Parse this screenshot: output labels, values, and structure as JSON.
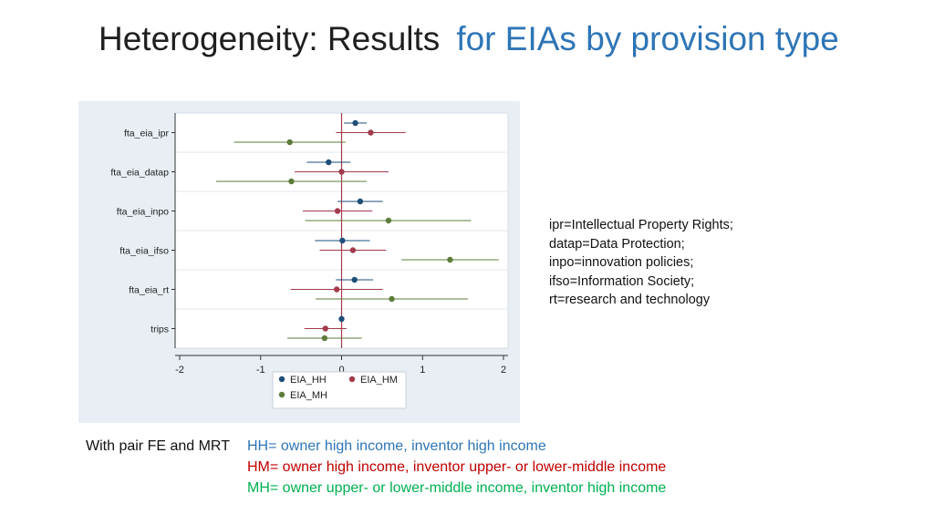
{
  "title": {
    "main": "Heterogeneity: Results",
    "accent": "for EIAs by provision type"
  },
  "chart_data": {
    "type": "scatter",
    "subtype": "coefficient-plot",
    "categories": [
      "fta_eia_ipr",
      "fta_eia_datap",
      "fta_eia_inpo",
      "fta_eia_ifso",
      "fta_eia_rt",
      "trips"
    ],
    "xlim": [
      -2,
      2
    ],
    "xticks": [
      -2,
      -1,
      0,
      1,
      2
    ],
    "reference_line_x": 0,
    "grid": true,
    "legend_placement": "bottom",
    "series": [
      {
        "name": "EIA_HH",
        "color": "#1f4e79",
        "values": [
          0.17,
          -0.16,
          0.23,
          0.01,
          0.16,
          0.0
        ],
        "ci_low": [
          0.03,
          -0.43,
          -0.05,
          -0.33,
          -0.07,
          -0.02
        ],
        "ci_high": [
          0.31,
          0.11,
          0.51,
          0.35,
          0.39,
          0.02
        ]
      },
      {
        "name": "EIA_HM",
        "color": "#a23b4c",
        "values": [
          0.36,
          0.0,
          -0.05,
          0.14,
          -0.06,
          -0.2
        ],
        "ci_low": [
          -0.07,
          -0.58,
          -0.48,
          -0.27,
          -0.63,
          -0.46
        ],
        "ci_high": [
          0.79,
          0.58,
          0.38,
          0.55,
          0.51,
          0.06
        ]
      },
      {
        "name": "EIA_MH",
        "color": "#5d7c3a",
        "values": [
          -0.64,
          -0.62,
          0.58,
          1.34,
          0.62,
          -0.21
        ],
        "ci_low": [
          -1.33,
          -1.55,
          -0.45,
          0.74,
          -0.32,
          -0.67
        ],
        "ci_high": [
          0.05,
          0.31,
          1.6,
          1.94,
          1.56,
          0.25
        ]
      }
    ]
  },
  "abbreviations": [
    "ipr=Intellectual Property Rights;",
    "datap=Data Protection;",
    " inpo=innovation policies;",
    " ifso=Information Society;",
    " rt=research and technology"
  ],
  "footer": {
    "prefix": "With pair FE and MRT",
    "hh": "HH= owner high income, inventor high income",
    "hm": "HM= owner high income, inventor upper- or lower-middle income",
    "mh": "MH= owner upper- or lower-middle income, inventor high income"
  },
  "colors": {
    "hh_text": "#2e75b6",
    "hm_text": "#c00000",
    "mh_text": "#00b050",
    "ref_line": "#a23b4c"
  }
}
